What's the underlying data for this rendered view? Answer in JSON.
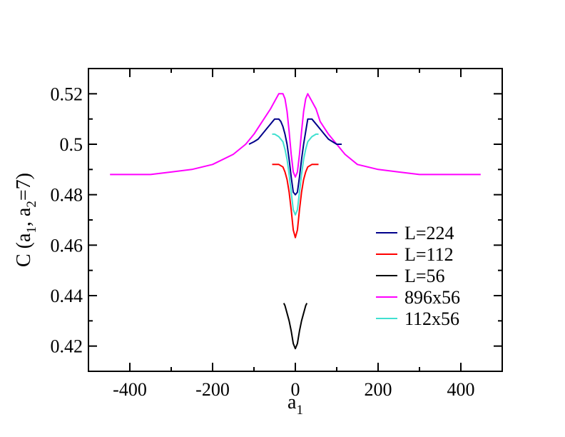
{
  "chart_data": {
    "type": "line",
    "xlabel": {
      "main": "a",
      "sub": "1"
    },
    "ylabel": {
      "parts": [
        {
          "text": "C (a",
          "sub": false
        },
        {
          "text": "1",
          "sub": true
        },
        {
          "text": ", a",
          "sub": false
        },
        {
          "text": "2",
          "sub": true
        },
        {
          "text": "=7)",
          "sub": false
        }
      ]
    },
    "xlim": [
      -500,
      500
    ],
    "ylim": [
      0.41,
      0.53
    ],
    "x_ticks": [
      -400,
      -200,
      0,
      200,
      400
    ],
    "x_tick_labels": [
      "-400",
      "-200",
      "0",
      "200",
      "400"
    ],
    "y_ticks": [
      0.42,
      0.44,
      0.46,
      0.48,
      0.5,
      0.52
    ],
    "y_tick_labels": [
      "0.42",
      "0.44",
      "0.46",
      "0.48",
      "0.5",
      "0.52"
    ],
    "grid": false,
    "legend_position": "lower-right",
    "series": [
      {
        "name": "L=224",
        "color": "#00008b",
        "x": [
          -112,
          -100,
          -90,
          -80,
          -70,
          -60,
          -50,
          -40,
          -35,
          -30,
          -25,
          -20,
          -15,
          -10,
          -5,
          0,
          5,
          10,
          15,
          20,
          25,
          30,
          40,
          50,
          60,
          70,
          80,
          90,
          100,
          112
        ],
        "y": [
          0.5,
          0.501,
          0.502,
          0.504,
          0.506,
          0.508,
          0.51,
          0.51,
          0.509,
          0.507,
          0.504,
          0.5,
          0.494,
          0.487,
          0.481,
          0.48,
          0.481,
          0.487,
          0.494,
          0.5,
          0.505,
          0.51,
          0.51,
          0.508,
          0.506,
          0.504,
          0.502,
          0.501,
          0.5,
          0.5
        ]
      },
      {
        "name": "L=112",
        "color": "#ff0000",
        "x": [
          -56,
          -50,
          -40,
          -30,
          -25,
          -20,
          -15,
          -10,
          -5,
          0,
          5,
          10,
          15,
          20,
          25,
          30,
          40,
          50,
          56
        ],
        "y": [
          0.492,
          0.492,
          0.492,
          0.491,
          0.489,
          0.486,
          0.481,
          0.474,
          0.466,
          0.463,
          0.466,
          0.474,
          0.481,
          0.486,
          0.489,
          0.491,
          0.492,
          0.492,
          0.492
        ]
      },
      {
        "name": "L=56",
        "color": "#000000",
        "x": [
          -28,
          -25,
          -20,
          -15,
          -10,
          -5,
          0,
          5,
          10,
          15,
          20,
          25,
          28
        ],
        "y": [
          0.437,
          0.436,
          0.433,
          0.43,
          0.426,
          0.421,
          0.419,
          0.421,
          0.426,
          0.43,
          0.433,
          0.436,
          0.437
        ]
      },
      {
        "name": "896x56",
        "color": "#ff00ff",
        "x": [
          -448,
          -400,
          -350,
          -300,
          -250,
          -200,
          -150,
          -120,
          -100,
          -80,
          -60,
          -50,
          -40,
          -30,
          -25,
          -20,
          -15,
          -10,
          -5,
          0,
          5,
          10,
          15,
          20,
          25,
          30,
          40,
          50,
          60,
          80,
          100,
          120,
          150,
          200,
          250,
          300,
          350,
          400,
          448
        ],
        "y": [
          0.488,
          0.488,
          0.488,
          0.489,
          0.49,
          0.492,
          0.496,
          0.5,
          0.504,
          0.509,
          0.514,
          0.517,
          0.52,
          0.52,
          0.518,
          0.513,
          0.505,
          0.496,
          0.489,
          0.487,
          0.489,
          0.496,
          0.505,
          0.513,
          0.518,
          0.52,
          0.517,
          0.514,
          0.509,
          0.504,
          0.5,
          0.496,
          0.492,
          0.49,
          0.489,
          0.488,
          0.488,
          0.488,
          0.488
        ]
      },
      {
        "name": "112x56",
        "color": "#40e0d0",
        "x": [
          -56,
          -50,
          -40,
          -30,
          -25,
          -20,
          -15,
          -10,
          -5,
          0,
          5,
          10,
          15,
          20,
          25,
          30,
          40,
          50,
          56
        ],
        "y": [
          0.504,
          0.504,
          0.503,
          0.501,
          0.498,
          0.494,
          0.488,
          0.481,
          0.474,
          0.472,
          0.474,
          0.481,
          0.488,
          0.494,
          0.498,
          0.501,
          0.503,
          0.504,
          0.504
        ]
      }
    ]
  }
}
